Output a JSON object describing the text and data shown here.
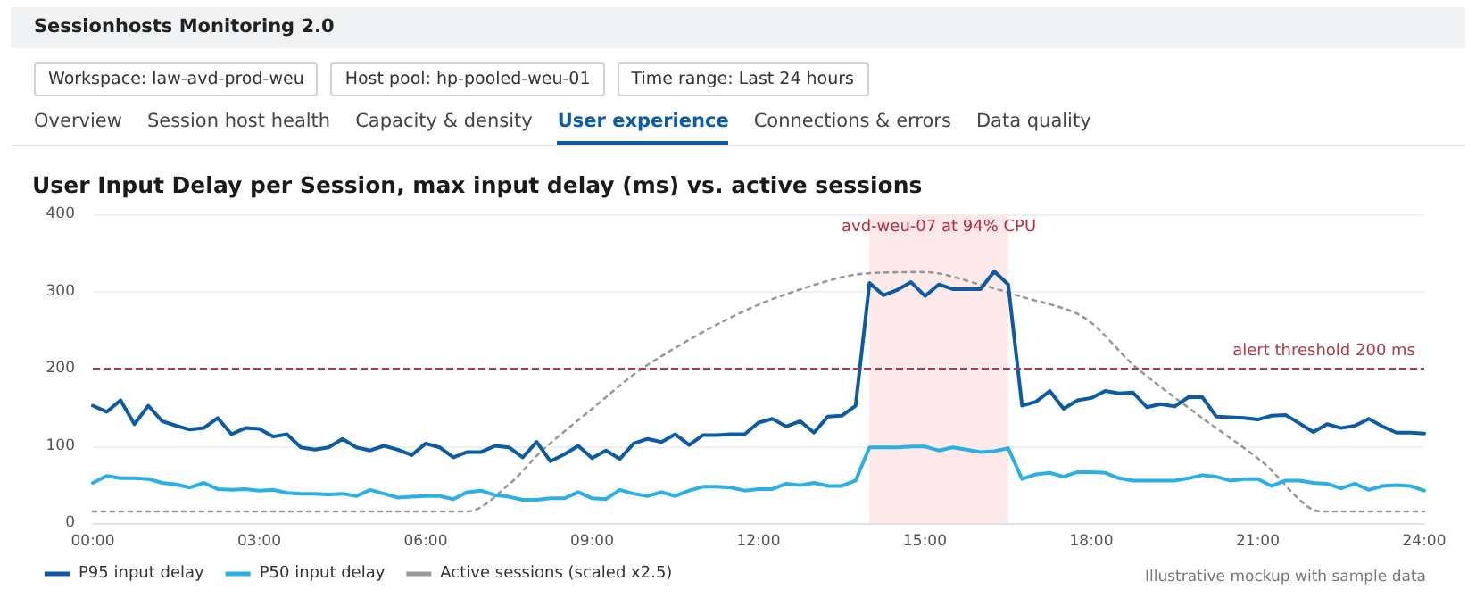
{
  "chart_data": {
    "type": "line",
    "title": "User Input Delay per Session, max input delay (ms) vs. active sessions",
    "annotations": [
      "Sessionhosts Monitoring 2.0",
      "Workspace: law-avd-prod-weu",
      "Host pool: hp-pooled-weu-01",
      "Time range: Last 24 hours",
      "Overview",
      "Session host health",
      "Capacity & density",
      "User experience",
      "Connections & errors",
      "Data quality",
      "Illustrative mockup with sample data"
    ],
    "x": [
      0,
      0.25,
      0.5,
      0.75,
      1,
      1.25,
      1.5,
      1.75,
      2,
      2.25,
      2.5,
      2.75,
      3,
      3.25,
      3.5,
      3.75,
      4,
      4.25,
      4.5,
      4.75,
      5,
      5.25,
      5.5,
      5.75,
      6,
      6.25,
      6.5,
      6.75,
      7,
      7.25,
      7.5,
      7.75,
      8,
      8.25,
      8.5,
      8.75,
      9,
      9.25,
      9.5,
      9.75,
      10,
      10.25,
      10.5,
      10.75,
      11,
      11.25,
      11.5,
      11.75,
      12,
      12.25,
      12.5,
      12.75,
      13,
      13.25,
      13.5,
      13.75,
      14,
      14.25,
      14.5,
      14.75,
      15,
      15.25,
      15.5,
      15.75,
      16,
      16.25,
      16.5,
      16.75,
      17,
      17.25,
      17.5,
      17.75,
      18,
      18.25,
      18.5,
      18.75,
      19,
      19.25,
      19.5,
      19.75,
      20,
      20.25,
      20.5,
      20.75,
      21,
      21.25,
      21.5,
      21.75,
      22,
      22.25,
      22.5,
      22.75,
      23,
      23.25,
      23.5,
      23.75,
      24
    ],
    "series": [
      {
        "name": "P95 input delay",
        "color": "#0b5ca8",
        "values": [
          152,
          144,
          159,
          128,
          152,
          132,
          126,
          121,
          123,
          136,
          115,
          123,
          122,
          112,
          115,
          98,
          95,
          98,
          109,
          98,
          94,
          100,
          95,
          88,
          103,
          98,
          85,
          92,
          92,
          100,
          98,
          85,
          105,
          80,
          89,
          100,
          84,
          94,
          83,
          103,
          109,
          105,
          115,
          101,
          114,
          114,
          115,
          115,
          130,
          135,
          125,
          132,
          117,
          138,
          139,
          152,
          311,
          295,
          302,
          312,
          294,
          309,
          303,
          303,
          303,
          326,
          309,
          152,
          157,
          171,
          148,
          159,
          162,
          171,
          168,
          169,
          150,
          154,
          151,
          163,
          163,
          138,
          137,
          136,
          134,
          139,
          140,
          129,
          118,
          128,
          123,
          126,
          135,
          125,
          117,
          117,
          116
        ]
      },
      {
        "name": "P50 input delay",
        "color": "#2ab0e8",
        "values": [
          52,
          61,
          58,
          58,
          57,
          52,
          50,
          46,
          52,
          44,
          43,
          44,
          42,
          43,
          39,
          38,
          38,
          37,
          38,
          35,
          43,
          38,
          33,
          34,
          35,
          35,
          31,
          40,
          42,
          36,
          34,
          30,
          30,
          32,
          32,
          40,
          32,
          31,
          43,
          38,
          35,
          40,
          35,
          42,
          47,
          47,
          46,
          42,
          44,
          44,
          51,
          49,
          52,
          48,
          48,
          55,
          98,
          98,
          98,
          99,
          99,
          94,
          98,
          95,
          92,
          93,
          97,
          57,
          63,
          65,
          60,
          66,
          66,
          65,
          58,
          55,
          55,
          55,
          55,
          58,
          62,
          60,
          55,
          57,
          57,
          48,
          55,
          55,
          52,
          51,
          45,
          51,
          43,
          48,
          49,
          48,
          42
        ]
      },
      {
        "name": "Active sessions (scaled x2.5)",
        "color": "#999999",
        "line_style": "dotted",
        "x": [
          0,
          6.75,
          7.5,
          8.1,
          9,
          9.9,
          11.3,
          12.4,
          13.9,
          15,
          16,
          16.7,
          17.85,
          18.8,
          20,
          21.1,
          22,
          22.25,
          24
        ],
        "values": [
          15,
          15,
          50,
          94,
          148,
          200,
          259,
          294,
          323,
          325,
          309,
          294,
          267,
          202,
          136,
          78,
          17,
          15,
          15
        ]
      }
    ],
    "xlim": [
      0,
      24
    ],
    "xticks": [
      {
        "value": 0,
        "label": "00:00"
      },
      {
        "value": 3,
        "label": "03:00"
      },
      {
        "value": 6,
        "label": "06:00"
      },
      {
        "value": 9,
        "label": "09:00"
      },
      {
        "value": 12,
        "label": "12:00"
      },
      {
        "value": 15,
        "label": "15:00"
      },
      {
        "value": 18,
        "label": "18:00"
      },
      {
        "value": 21,
        "label": "21:00"
      },
      {
        "value": 24,
        "label": "24:00"
      }
    ],
    "ylim": [
      0,
      400
    ],
    "yticks": [
      0,
      100,
      200,
      300,
      400
    ],
    "ref_lines": [
      {
        "axis": "y",
        "value": 200,
        "label": "alert threshold 200 ms",
        "color": "#b03a48",
        "line_style": "dashed"
      }
    ],
    "bands": [
      {
        "axis": "x",
        "from": 14,
        "to": 16.5,
        "label": "avd-weu-07 at 94% CPU",
        "color": "#fde8ea"
      }
    ],
    "grid": "y",
    "legend": "bottom left",
    "marker": "none",
    "line_style": "solid"
  }
}
